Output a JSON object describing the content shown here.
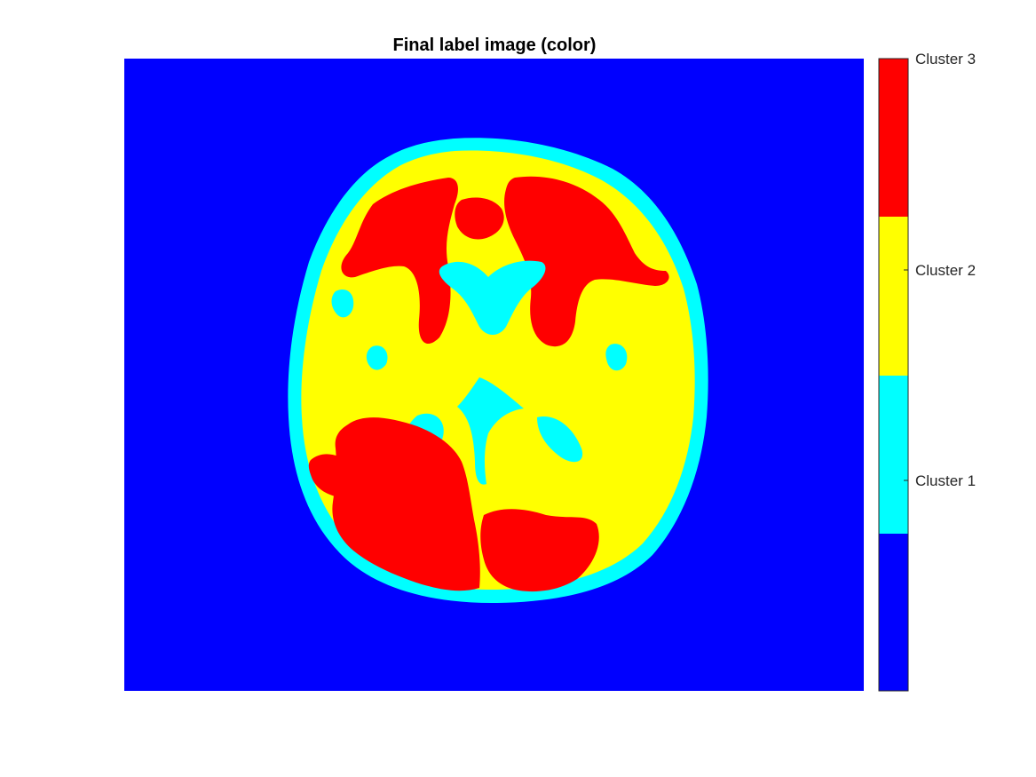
{
  "figure": {
    "title": "Final label image (color)",
    "image_type": "axial brain MRI segmentation label map",
    "background_color": "#0000ff"
  },
  "colorbar": {
    "colors": [
      "#0000ff",
      "#00ffff",
      "#ffff00",
      "#ff0000"
    ],
    "ticks": [
      {
        "label": "Cluster 1",
        "value": 1
      },
      {
        "label": "Cluster 2",
        "value": 2
      },
      {
        "label": "Cluster 3",
        "value": 3
      }
    ],
    "range": [
      0,
      4
    ]
  },
  "colors": {
    "background": "#0000ff",
    "cluster_1": "#00ffff",
    "cluster_2": "#ffff00",
    "cluster_3": "#ff0000"
  }
}
